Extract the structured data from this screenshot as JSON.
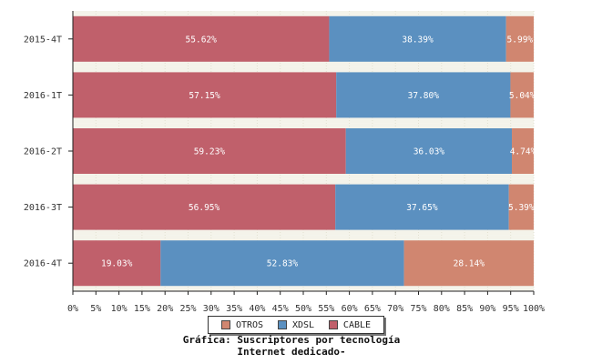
{
  "chart_data": {
    "type": "bar",
    "orientation": "horizontal",
    "stacked": true,
    "percent": true,
    "categories": [
      "2015-4T",
      "2016-1T",
      "2016-2T",
      "2016-3T",
      "2016-4T"
    ],
    "series": [
      {
        "name": "CABLE",
        "color": "#c0606b",
        "values": [
          55.62,
          57.15,
          59.23,
          56.95,
          19.03
        ],
        "labels": [
          "55.62%",
          "57.15%",
          "59.23%",
          "56.95%",
          "19.03%"
        ]
      },
      {
        "name": "XDSL",
        "color": "#5b90c0",
        "values": [
          38.39,
          37.8,
          36.03,
          37.65,
          52.83
        ],
        "labels": [
          "38.39%",
          "37.80%",
          "36.03%",
          "37.65%",
          "52.83%"
        ]
      },
      {
        "name": "OTROS",
        "color": "#d08670",
        "values": [
          5.99,
          5.04,
          4.74,
          5.39,
          28.14
        ],
        "labels": [
          "5.99%",
          "5.04%",
          "4.74%",
          "5.39%",
          "28.14%"
        ]
      }
    ],
    "xlim": [
      0,
      100
    ],
    "xticks": [
      "0%",
      "5%",
      "10%",
      "15%",
      "20%",
      "25%",
      "30%",
      "35%",
      "40%",
      "45%",
      "50%",
      "55%",
      "60%",
      "65%",
      "70%",
      "75%",
      "80%",
      "85%",
      "90%",
      "95%",
      "100%"
    ],
    "legend_order": [
      "OTROS",
      "XDSL",
      "CABLE"
    ],
    "legend_position": "bottom",
    "title_line1": "Gráfica: Suscriptores por tecnología",
    "title_line2": "Internet dedicado-",
    "grid": true
  },
  "colors": {
    "grid_band": "#f4f3ea",
    "axis": "#222222"
  }
}
